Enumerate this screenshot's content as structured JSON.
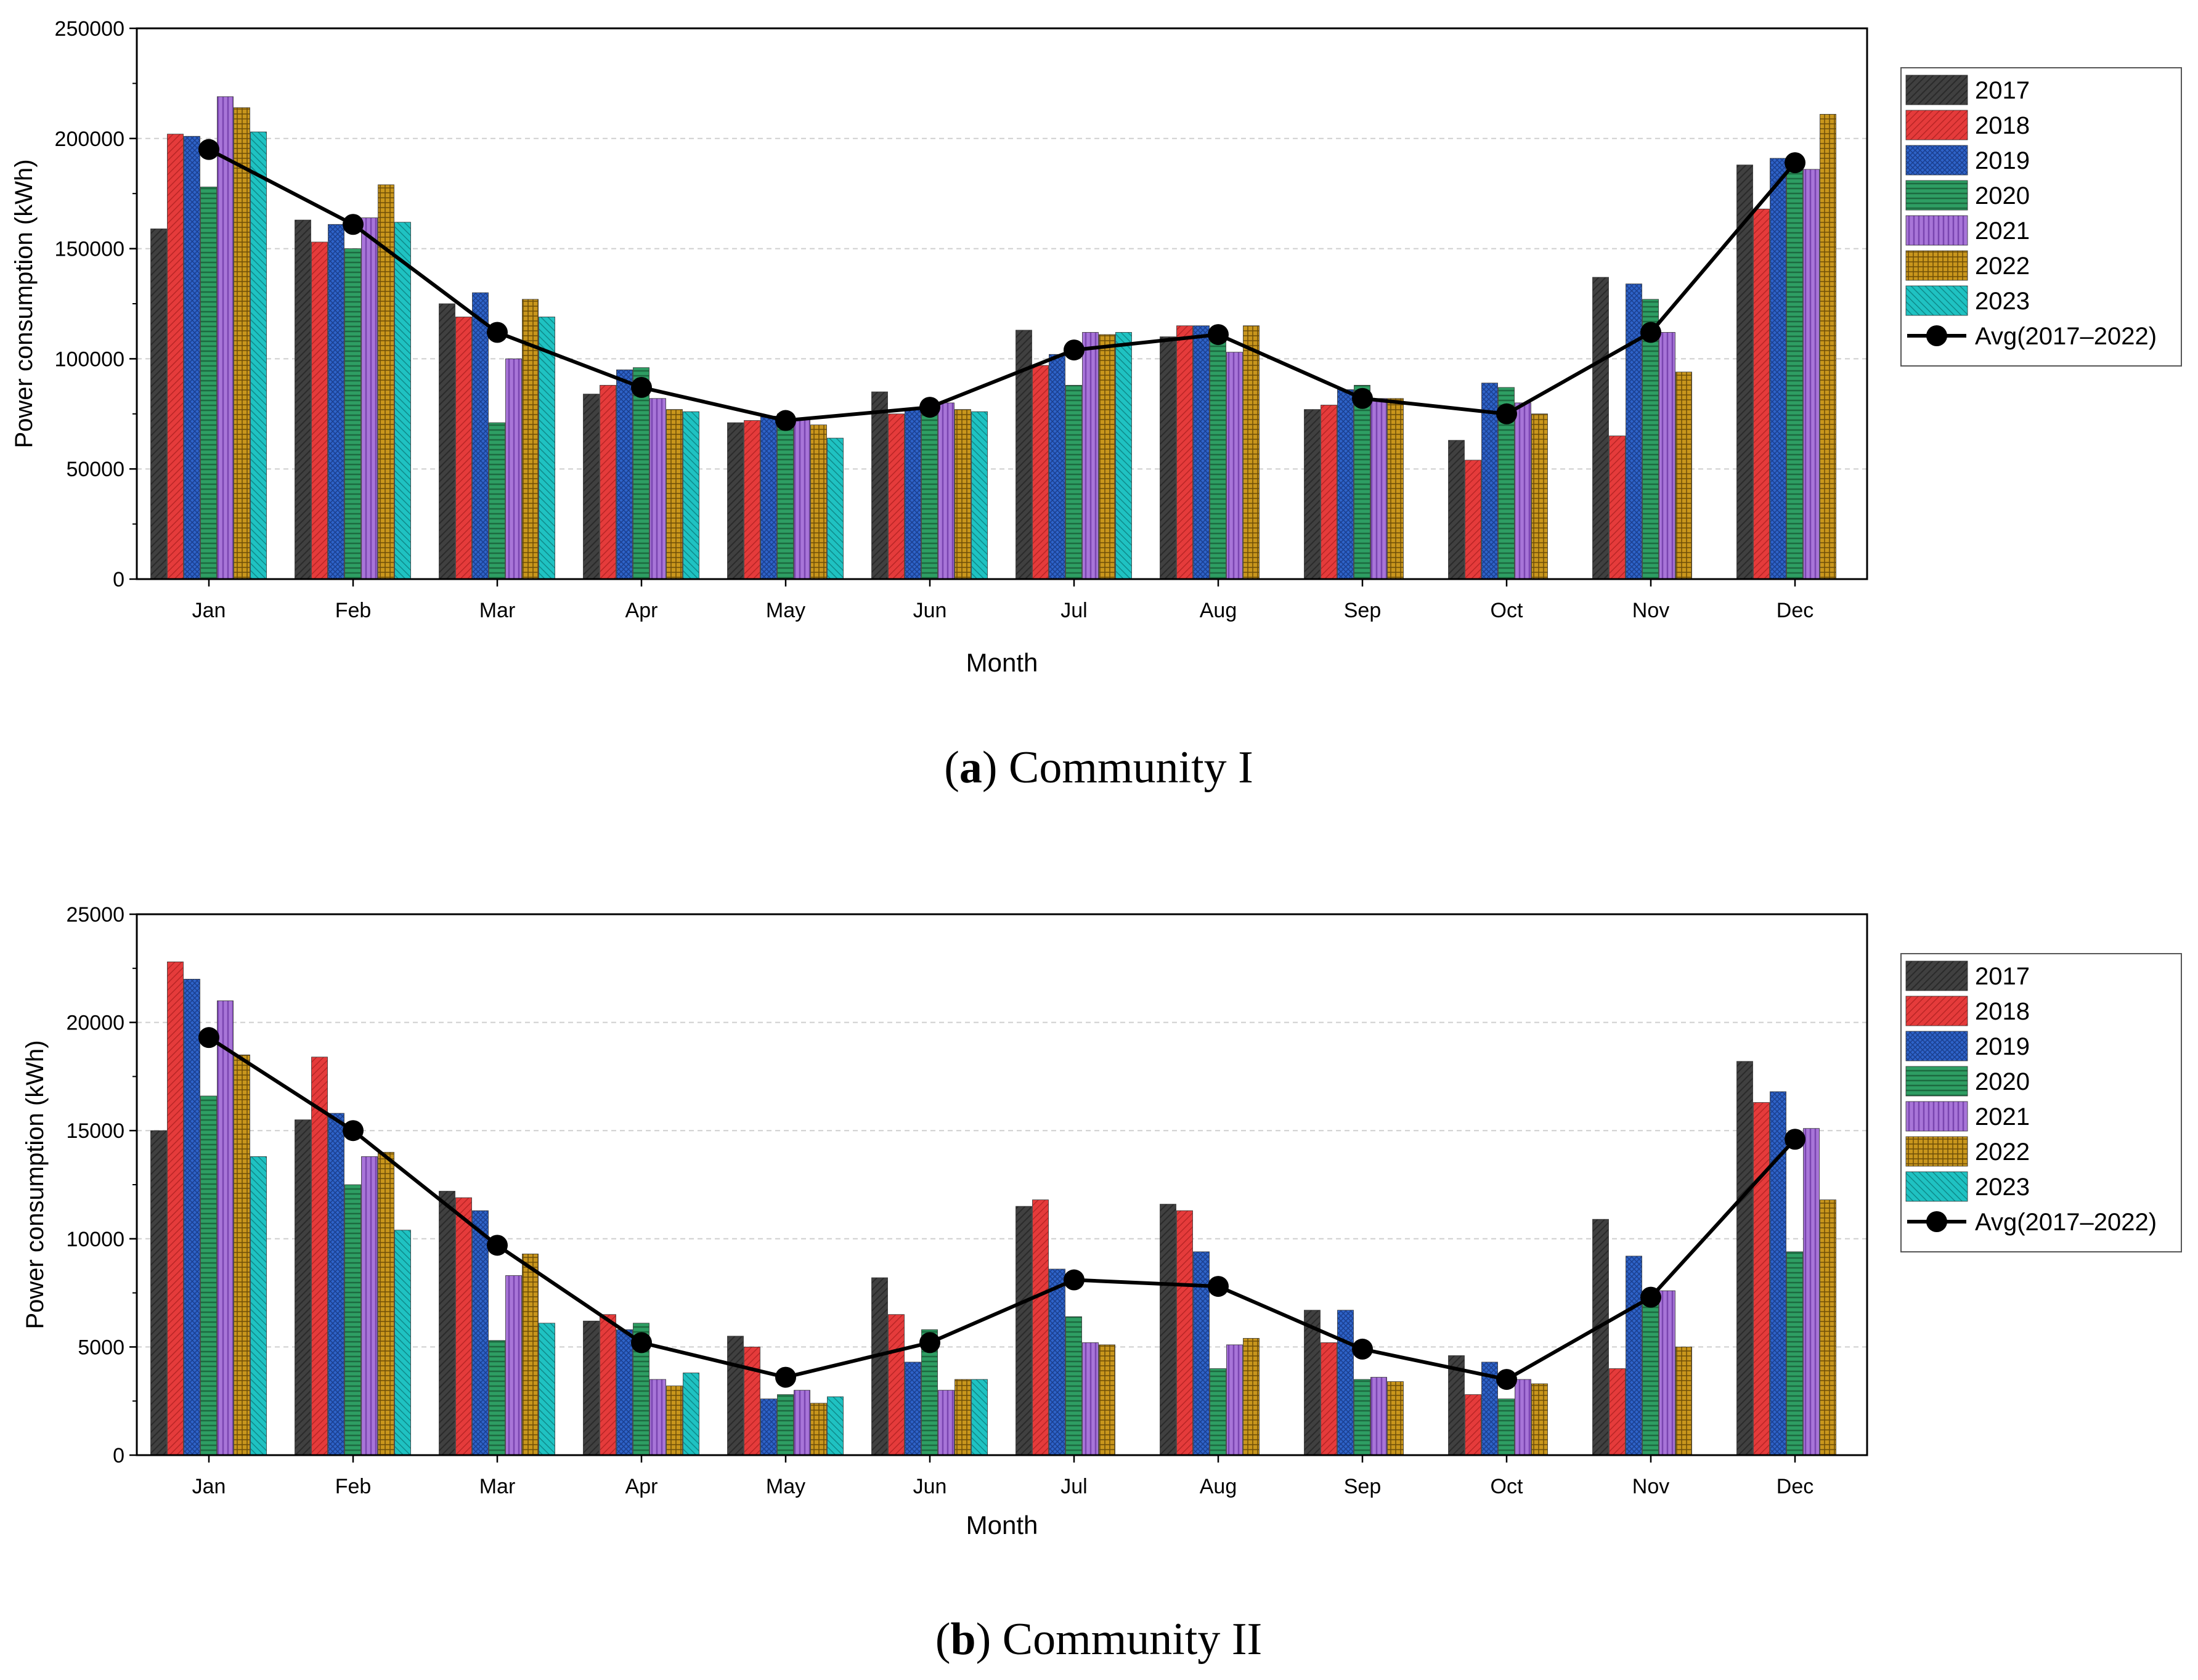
{
  "chart_data": [
    {
      "type": "bar",
      "caption_letter": "a",
      "caption_text": " Community I",
      "xlabel": "Month",
      "ylabel": "Power consumption (kWh)",
      "ylim": [
        0,
        250000
      ],
      "yticks": [
        "0",
        "50000",
        "100000",
        "150000",
        "200000",
        "250000"
      ],
      "categories": [
        "Jan",
        "Feb",
        "Mar",
        "Apr",
        "May",
        "Jun",
        "Jul",
        "Aug",
        "Sep",
        "Oct",
        "Nov",
        "Dec"
      ],
      "series": [
        {
          "name": "2017",
          "values": [
            159000,
            163000,
            125000,
            84000,
            71000,
            85000,
            113000,
            110000,
            77000,
            63000,
            137000,
            188000
          ]
        },
        {
          "name": "2018",
          "values": [
            202000,
            153000,
            119000,
            88000,
            72000,
            75000,
            97000,
            115000,
            79000,
            54000,
            65000,
            168000
          ]
        },
        {
          "name": "2019",
          "values": [
            201000,
            161000,
            130000,
            95000,
            74000,
            77000,
            102000,
            115000,
            86000,
            89000,
            134000,
            191000
          ]
        },
        {
          "name": "2020",
          "values": [
            178000,
            150000,
            71000,
            96000,
            75000,
            77000,
            88000,
            108000,
            88000,
            87000,
            127000,
            190000
          ]
        },
        {
          "name": "2021",
          "values": [
            219000,
            164000,
            100000,
            82000,
            73000,
            80000,
            112000,
            103000,
            82000,
            80000,
            112000,
            186000
          ]
        },
        {
          "name": "2022",
          "values": [
            214000,
            179000,
            127000,
            77000,
            70000,
            77000,
            111000,
            115000,
            82000,
            75000,
            94000,
            211000
          ]
        },
        {
          "name": "2023",
          "values": [
            203000,
            162000,
            119000,
            76000,
            64000,
            76000,
            112000,
            null,
            null,
            null,
            null,
            null
          ]
        }
      ],
      "average": {
        "name": "Avg(2017–2022)",
        "values": [
          195000,
          161000,
          112000,
          87000,
          72000,
          78000,
          104000,
          111000,
          82000,
          75000,
          112000,
          189000
        ]
      }
    },
    {
      "type": "bar",
      "caption_letter": "b",
      "caption_text": " Community II",
      "xlabel": "Month",
      "ylabel": "Power consumption (kWh)",
      "ylim": [
        0,
        25000
      ],
      "yticks": [
        "0",
        "5000",
        "10000",
        "15000",
        "20000",
        "25000"
      ],
      "categories": [
        "Jan",
        "Feb",
        "Mar",
        "Apr",
        "May",
        "Jun",
        "Jul",
        "Aug",
        "Sep",
        "Oct",
        "Nov",
        "Dec"
      ],
      "series": [
        {
          "name": "2017",
          "values": [
            15000,
            15500,
            12200,
            6200,
            5500,
            8200,
            11500,
            11600,
            6700,
            4600,
            10900,
            18200
          ]
        },
        {
          "name": "2018",
          "values": [
            22800,
            18400,
            11900,
            6500,
            5000,
            6500,
            11800,
            11300,
            5200,
            2800,
            4000,
            16300
          ]
        },
        {
          "name": "2019",
          "values": [
            22000,
            15800,
            11300,
            5800,
            2600,
            4300,
            8600,
            9400,
            6700,
            4300,
            9200,
            16800
          ]
        },
        {
          "name": "2020",
          "values": [
            16600,
            12500,
            5300,
            6100,
            2800,
            5800,
            6400,
            4000,
            3500,
            2600,
            7000,
            9400
          ]
        },
        {
          "name": "2021",
          "values": [
            21000,
            13800,
            8300,
            3500,
            3000,
            3000,
            5200,
            5100,
            3600,
            3500,
            7600,
            15100
          ]
        },
        {
          "name": "2022",
          "values": [
            18500,
            14000,
            9300,
            3200,
            2400,
            3500,
            5100,
            5400,
            3400,
            3300,
            5000,
            11800
          ]
        },
        {
          "name": "2023",
          "values": [
            13800,
            10400,
            6100,
            3800,
            2700,
            3500,
            null,
            null,
            null,
            null,
            null,
            null
          ]
        }
      ],
      "average": {
        "name": "Avg(2017–2022)",
        "values": [
          19300,
          15000,
          9700,
          5200,
          3600,
          5200,
          8100,
          7800,
          4900,
          3500,
          7300,
          14600
        ]
      }
    }
  ],
  "series_colors": [
    "#404040",
    "#e53b3b",
    "#2e63c8",
    "#2e9e63",
    "#a875d8",
    "#c9961c",
    "#1fc2c2"
  ],
  "average_color": "#000000"
}
